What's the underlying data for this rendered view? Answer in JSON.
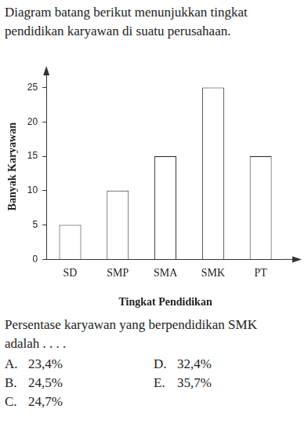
{
  "intro": "Diagram batang berikut menunjukkan tingkat pendidikan karyawan di suatu perusahaan.",
  "chart_data": {
    "type": "bar",
    "x_label": "Tingkat Pendidikan",
    "y_label": "Banyak Karyawan",
    "categories": [
      "SD",
      "SMP",
      "SMA",
      "SMK",
      "PT"
    ],
    "values": [
      5,
      10,
      15,
      25,
      15
    ],
    "color": "#ffffff",
    "ylim": [
      0,
      27
    ],
    "yticks": [
      0,
      5,
      10,
      15,
      20,
      25
    ],
    "grid": false
  },
  "question": "Persentase karyawan yang berpendidikan SMK adalah . . . .",
  "options": [
    {
      "label": "A.",
      "text": "23,4%"
    },
    {
      "label": "B.",
      "text": "24,5%"
    },
    {
      "label": "C.",
      "text": "24,7%"
    },
    {
      "label": "D.",
      "text": "32,4%"
    },
    {
      "label": "E.",
      "text": "35,7%"
    }
  ]
}
